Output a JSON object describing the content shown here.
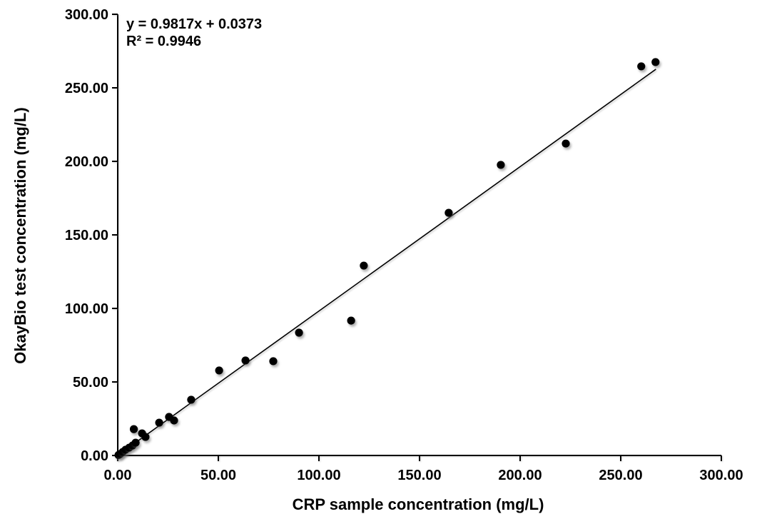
{
  "figure": {
    "background": "#ffffff",
    "text_color": "#000000"
  },
  "chart_data": {
    "type": "scatter",
    "title": "",
    "xlabel": "CRP sample concentration (mg/L)",
    "ylabel": "OkayBio test concentration (mg/L)",
    "xlim": [
      0,
      300
    ],
    "ylim": [
      0,
      300
    ],
    "x_ticks": [
      0,
      50,
      100,
      150,
      200,
      250,
      300
    ],
    "y_ticks": [
      0,
      50,
      100,
      150,
      200,
      250,
      300
    ],
    "tick_label_decimals": 2,
    "grid": false,
    "legend_position": "none",
    "point_color": "#000000",
    "line_color": "#000000",
    "axis_color": "#000000",
    "points": [
      [
        0.4,
        0.3
      ],
      [
        1.2,
        1.0
      ],
      [
        2.5,
        2.4
      ],
      [
        3.9,
        3.9
      ],
      [
        5.7,
        5.3
      ],
      [
        7.4,
        6.8
      ],
      [
        8.9,
        8.7
      ],
      [
        8.0,
        17.9
      ],
      [
        12.1,
        15.0
      ],
      [
        13.8,
        12.6
      ],
      [
        20.6,
        22.3
      ],
      [
        25.5,
        26.2
      ],
      [
        28.0,
        23.8
      ],
      [
        36.5,
        37.9
      ],
      [
        50.4,
        57.8
      ],
      [
        63.5,
        64.6
      ],
      [
        77.3,
        64.1
      ],
      [
        90.1,
        83.5
      ],
      [
        116.0,
        91.7
      ],
      [
        122.3,
        129.1
      ],
      [
        164.5,
        165.0
      ],
      [
        190.4,
        197.6
      ],
      [
        222.7,
        212.1
      ],
      [
        260.2,
        264.6
      ],
      [
        267.3,
        267.5
      ]
    ],
    "trendline": {
      "slope": 0.9817,
      "intercept": 0.0373,
      "r_squared": 0.9946,
      "x_start": 0,
      "x_end": 267.5
    },
    "annotation": {
      "line1": "y = 0.9817x + 0.0373",
      "line2": "R² = 0.9946"
    }
  }
}
